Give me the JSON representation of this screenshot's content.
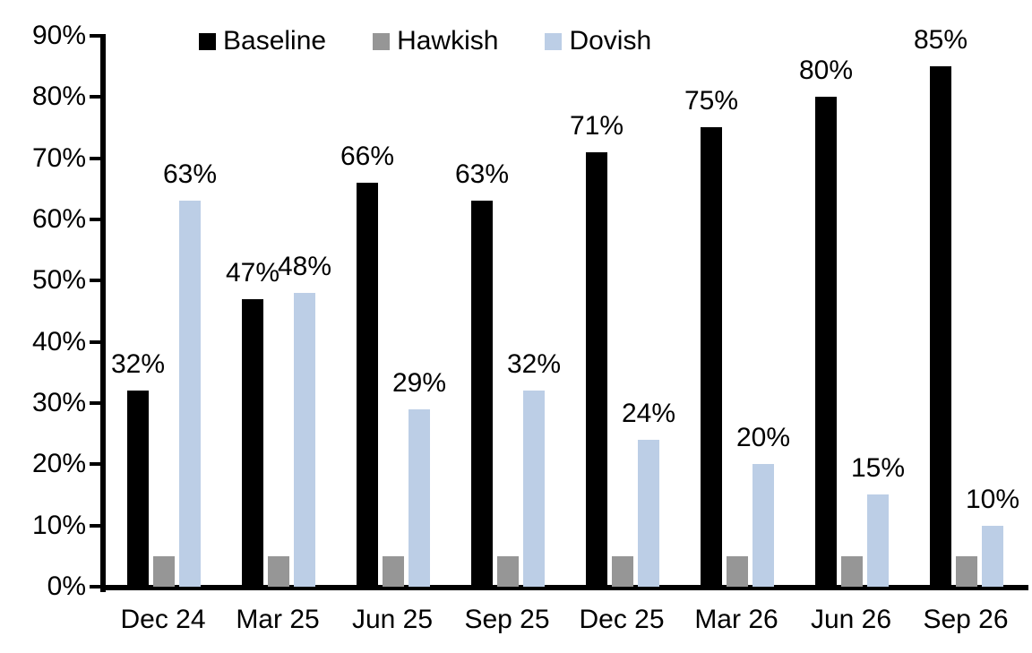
{
  "chart_data": {
    "type": "bar",
    "title": "",
    "xlabel": "",
    "ylabel": "",
    "categories": [
      "Dec 24",
      "Mar 25",
      "Jun 25",
      "Sep 25",
      "Dec 25",
      "Mar 26",
      "Jun 26",
      "Sep 26"
    ],
    "series": [
      {
        "name": "Baseline",
        "color": "#000000",
        "values": [
          32,
          47,
          66,
          63,
          71,
          75,
          80,
          85
        ],
        "data_labels": [
          "32%",
          "47%",
          "66%",
          "63%",
          "71%",
          "75%",
          "80%",
          "85%"
        ]
      },
      {
        "name": "Hawkish",
        "color": "#969696",
        "values": [
          5,
          5,
          5,
          5,
          5,
          5,
          5,
          5
        ],
        "data_labels": [
          "",
          "",
          "",
          "",
          "",
          "",
          "",
          ""
        ]
      },
      {
        "name": "Dovish",
        "color": "#BCCEE6",
        "values": [
          63,
          48,
          29,
          32,
          24,
          20,
          15,
          10
        ],
        "data_labels": [
          "63%",
          "48%",
          "29%",
          "32%",
          "24%",
          "20%",
          "15%",
          "10%"
        ]
      }
    ],
    "ylim": [
      0,
      90
    ],
    "y_tick_labels": [
      "0%",
      "10%",
      "20%",
      "30%",
      "40%",
      "50%",
      "60%",
      "70%",
      "80%",
      "90%"
    ],
    "grid": false,
    "legend_position": "top",
    "axis_color": "#000000"
  }
}
